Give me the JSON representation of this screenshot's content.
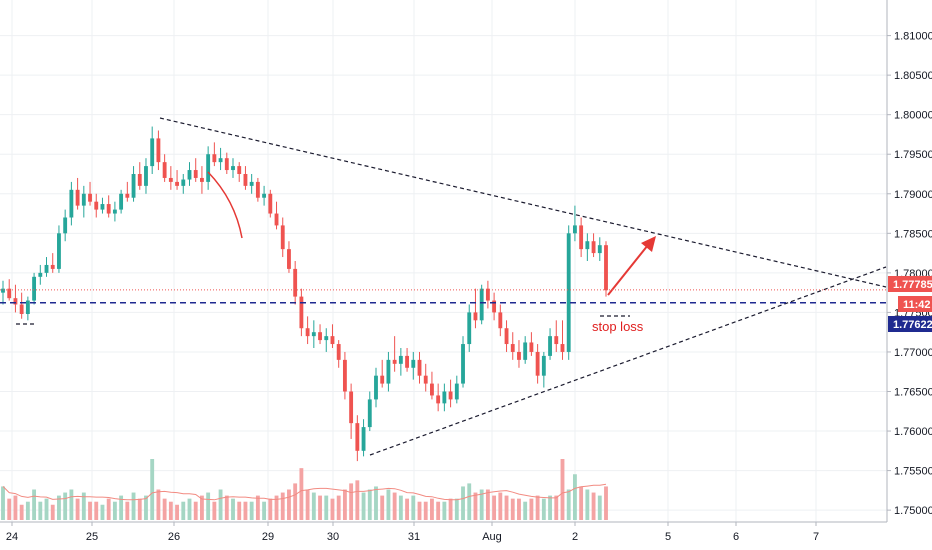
{
  "chart_data": {
    "type": "candlestick",
    "grid": true,
    "y_ticks": [
      "1.81000",
      "1.80500",
      "1.80000",
      "1.79500",
      "1.79000",
      "1.78500",
      "1.78000",
      "1.77500",
      "1.77000",
      "1.76500",
      "1.76000",
      "1.75500",
      "1.75000"
    ],
    "x_ticks": [
      "24",
      "25",
      "26",
      "29",
      "30",
      "31",
      "Aug",
      "2",
      "5",
      "6",
      "7"
    ],
    "ylim": [
      1.7485,
      1.8145
    ],
    "price_badges": [
      {
        "label": "1.77785",
        "color": "#ef5350"
      },
      {
        "label": "11:42",
        "color": "#ef5350"
      },
      {
        "label": "1.77622",
        "color": "#1f2a90"
      }
    ],
    "levels": [
      {
        "value": 1.77785,
        "style": "dotted",
        "color": "#ef5350"
      },
      {
        "value": 1.77622,
        "style": "dashed",
        "color": "#1f2a90"
      }
    ],
    "annotations": [
      {
        "text": "stop loss",
        "color": "#e02020"
      }
    ],
    "colors": {
      "up": "#26a69a",
      "down": "#ef5350",
      "vol_up": "#a5d6c4",
      "vol_down": "#f4a3a3",
      "ma": "#f28b82"
    },
    "candles": [
      [
        1.7775,
        1.779,
        1.776,
        1.778
      ],
      [
        1.778,
        1.7792,
        1.7765,
        1.7768
      ],
      [
        1.7768,
        1.7785,
        1.775,
        1.776
      ],
      [
        1.776,
        1.7775,
        1.7742,
        1.7748
      ],
      [
        1.7748,
        1.777,
        1.774,
        1.7765
      ],
      [
        1.7765,
        1.78,
        1.776,
        1.7795
      ],
      [
        1.7795,
        1.781,
        1.7785,
        1.78
      ],
      [
        1.78,
        1.782,
        1.7795,
        1.781
      ],
      [
        1.781,
        1.7825,
        1.78,
        1.7805
      ],
      [
        1.7805,
        1.786,
        1.78,
        1.785
      ],
      [
        1.785,
        1.788,
        1.784,
        1.787
      ],
      [
        1.787,
        1.7915,
        1.786,
        1.7905
      ],
      [
        1.7905,
        1.792,
        1.788,
        1.7885
      ],
      [
        1.7885,
        1.791,
        1.787,
        1.79
      ],
      [
        1.79,
        1.7915,
        1.7885,
        1.789
      ],
      [
        1.789,
        1.79,
        1.787,
        1.788
      ],
      [
        1.788,
        1.7895,
        1.7875,
        1.7887
      ],
      [
        1.7887,
        1.7898,
        1.787,
        1.7875
      ],
      [
        1.7875,
        1.789,
        1.7865,
        1.788
      ],
      [
        1.788,
        1.7905,
        1.7875,
        1.79
      ],
      [
        1.79,
        1.7915,
        1.789,
        1.7895
      ],
      [
        1.7895,
        1.7935,
        1.789,
        1.7925
      ],
      [
        1.7925,
        1.794,
        1.7905,
        1.791
      ],
      [
        1.791,
        1.7945,
        1.79,
        1.7935
      ],
      [
        1.7935,
        1.7985,
        1.7925,
        1.797
      ],
      [
        1.797,
        1.798,
        1.793,
        1.794
      ],
      [
        1.794,
        1.795,
        1.7915,
        1.792
      ],
      [
        1.792,
        1.7935,
        1.7905,
        1.7915
      ],
      [
        1.7915,
        1.793,
        1.7905,
        1.791
      ],
      [
        1.791,
        1.7925,
        1.79,
        1.7918
      ],
      [
        1.7918,
        1.794,
        1.791,
        1.793
      ],
      [
        1.793,
        1.7945,
        1.7915,
        1.792
      ],
      [
        1.792,
        1.7935,
        1.79,
        1.7915
      ],
      [
        1.7915,
        1.796,
        1.7905,
        1.795
      ],
      [
        1.795,
        1.7965,
        1.7935,
        1.794
      ],
      [
        1.794,
        1.7958,
        1.793,
        1.7945
      ],
      [
        1.7945,
        1.7952,
        1.7925,
        1.793
      ],
      [
        1.793,
        1.7945,
        1.792,
        1.7935
      ],
      [
        1.7935,
        1.794,
        1.7915,
        1.7925
      ],
      [
        1.7925,
        1.7935,
        1.7905,
        1.791
      ],
      [
        1.791,
        1.7925,
        1.79,
        1.7915
      ],
      [
        1.7915,
        1.792,
        1.789,
        1.7895
      ],
      [
        1.7895,
        1.791,
        1.7885,
        1.79
      ],
      [
        1.79,
        1.7905,
        1.787,
        1.7875
      ],
      [
        1.7875,
        1.789,
        1.7855,
        1.786
      ],
      [
        1.786,
        1.787,
        1.782,
        1.783
      ],
      [
        1.783,
        1.784,
        1.78,
        1.7805
      ],
      [
        1.7805,
        1.7815,
        1.776,
        1.777
      ],
      [
        1.777,
        1.778,
        1.772,
        1.773
      ],
      [
        1.773,
        1.7745,
        1.771,
        1.772
      ],
      [
        1.772,
        1.774,
        1.7705,
        1.7725
      ],
      [
        1.7725,
        1.7735,
        1.771,
        1.7715
      ],
      [
        1.7715,
        1.773,
        1.77,
        1.772
      ],
      [
        1.772,
        1.7735,
        1.7705,
        1.771
      ],
      [
        1.771,
        1.7715,
        1.768,
        1.769
      ],
      [
        1.769,
        1.77,
        1.764,
        1.765
      ],
      [
        1.765,
        1.766,
        1.759,
        1.761
      ],
      [
        1.761,
        1.762,
        1.7562,
        1.7575
      ],
      [
        1.7575,
        1.7615,
        1.7568,
        1.7605
      ],
      [
        1.7605,
        1.765,
        1.76,
        1.764
      ],
      [
        1.764,
        1.768,
        1.763,
        1.767
      ],
      [
        1.767,
        1.769,
        1.7655,
        1.766
      ],
      [
        1.766,
        1.77,
        1.765,
        1.769
      ],
      [
        1.769,
        1.772,
        1.7675,
        1.7685
      ],
      [
        1.7685,
        1.7705,
        1.767,
        1.7695
      ],
      [
        1.7695,
        1.7705,
        1.7675,
        1.768
      ],
      [
        1.768,
        1.77,
        1.7665,
        1.769
      ],
      [
        1.769,
        1.77,
        1.766,
        1.767
      ],
      [
        1.767,
        1.7685,
        1.765,
        1.766
      ],
      [
        1.766,
        1.7675,
        1.764,
        1.7645
      ],
      [
        1.7645,
        1.766,
        1.7625,
        1.7635
      ],
      [
        1.7635,
        1.766,
        1.7625,
        1.765
      ],
      [
        1.765,
        1.7665,
        1.763,
        1.764
      ],
      [
        1.764,
        1.767,
        1.7635,
        1.766
      ],
      [
        1.766,
        1.772,
        1.7655,
        1.771
      ],
      [
        1.771,
        1.776,
        1.77,
        1.775
      ],
      [
        1.775,
        1.778,
        1.773,
        1.774
      ],
      [
        1.774,
        1.7785,
        1.7735,
        1.778
      ],
      [
        1.778,
        1.779,
        1.7755,
        1.7765
      ],
      [
        1.7765,
        1.7775,
        1.774,
        1.775
      ],
      [
        1.775,
        1.776,
        1.772,
        1.773
      ],
      [
        1.773,
        1.774,
        1.77,
        1.771
      ],
      [
        1.771,
        1.7725,
        1.769,
        1.77
      ],
      [
        1.77,
        1.7715,
        1.768,
        1.769
      ],
      [
        1.769,
        1.772,
        1.7685,
        1.7712
      ],
      [
        1.7712,
        1.7725,
        1.7695,
        1.77
      ],
      [
        1.77,
        1.771,
        1.766,
        1.767
      ],
      [
        1.767,
        1.77,
        1.7655,
        1.7695
      ],
      [
        1.7695,
        1.773,
        1.769,
        1.772
      ],
      [
        1.772,
        1.774,
        1.77,
        1.771
      ],
      [
        1.771,
        1.774,
        1.769,
        1.77
      ],
      [
        1.77,
        1.786,
        1.769,
        1.785
      ],
      [
        1.785,
        1.7885,
        1.784,
        1.786
      ],
      [
        1.786,
        1.787,
        1.782,
        1.783
      ],
      [
        1.783,
        1.785,
        1.7815,
        1.784
      ],
      [
        1.784,
        1.785,
        1.782,
        1.7825
      ],
      [
        1.7825,
        1.7845,
        1.7815,
        1.7835
      ],
      [
        1.7835,
        1.784,
        1.777,
        1.7778
      ]
    ],
    "volumes": [
      0.55,
      0.35,
      0.4,
      0.25,
      0.3,
      0.5,
      0.3,
      0.35,
      0.25,
      0.4,
      0.45,
      0.5,
      0.35,
      0.45,
      0.3,
      0.3,
      0.25,
      0.35,
      0.3,
      0.4,
      0.3,
      0.45,
      0.35,
      0.4,
      0.9,
      0.5,
      0.35,
      0.3,
      0.25,
      0.3,
      0.35,
      0.3,
      0.4,
      0.45,
      0.3,
      0.5,
      0.4,
      0.35,
      0.3,
      0.3,
      0.3,
      0.4,
      0.3,
      0.35,
      0.4,
      0.45,
      0.5,
      0.6,
      0.7,
      0.5,
      0.45,
      0.4,
      0.4,
      0.35,
      0.4,
      0.5,
      0.6,
      0.65,
      0.45,
      0.5,
      0.55,
      0.4,
      0.5,
      0.45,
      0.4,
      0.35,
      0.4,
      0.3,
      0.3,
      0.35,
      0.3,
      0.3,
      0.35,
      0.35,
      0.55,
      0.6,
      0.45,
      0.5,
      0.5,
      0.4,
      0.45,
      0.4,
      0.35,
      0.35,
      0.3,
      0.35,
      0.4,
      0.35,
      0.4,
      0.4,
      0.45,
      0.5,
      0.75,
      0.55,
      0.5,
      0.45,
      0.4,
      0.55
    ],
    "volume_highlights": {
      "24": 1.0,
      "48": 0.85,
      "90": 1.0
    }
  }
}
